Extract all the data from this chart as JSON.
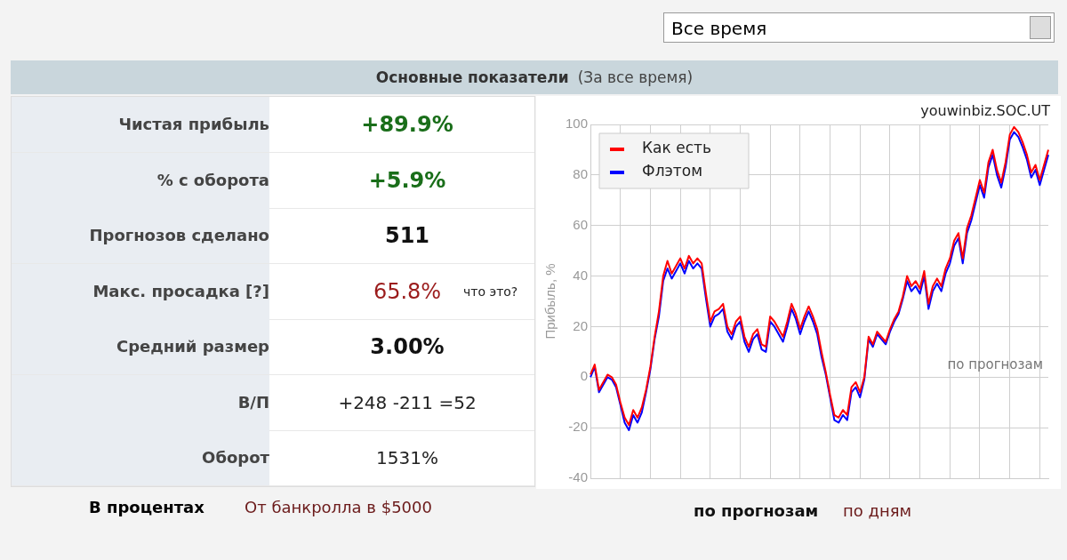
{
  "chart_data": [
    {
      "type": "other",
      "title": "Основные показатели",
      "subtitle": "(За все время)",
      "annotations": [
        "Чистая прибыль",
        "+89.9%",
        "% с оборота",
        "+5.9%",
        "Прогнозов сделано",
        "511",
        "Макс. просадка [?]",
        "65.8%",
        "Средний размер",
        "3.00%",
        "В/П",
        "+248 -211 =52",
        "Оборот",
        "1531%",
        "что это?",
        "В процентах",
        "От банкролла в $5000",
        "Все время"
      ]
    },
    {
      "type": "line",
      "subtitle": "youwinbiz.SOC.UT",
      "ylabel": "Прибыль, %",
      "annotations": [
        "по прогнозам",
        "по прогнозам",
        "по дням"
      ],
      "categories": [
        null,
        null,
        null,
        null,
        null,
        null,
        null,
        null,
        null,
        null,
        null,
        null,
        null,
        null,
        null,
        null,
        null,
        null,
        null,
        null,
        null,
        null,
        null,
        null,
        null,
        null,
        null,
        null,
        null,
        null,
        null,
        null,
        null,
        null,
        null,
        null,
        null,
        null,
        null,
        null,
        null,
        null,
        null,
        null,
        null,
        null,
        null,
        null,
        null,
        null,
        null,
        null,
        null,
        null,
        null,
        null,
        null,
        null,
        null,
        null,
        null,
        null,
        null,
        null,
        null,
        null,
        null,
        null,
        null,
        null,
        null,
        null,
        null,
        null,
        null,
        null,
        null,
        null,
        null,
        null,
        null,
        null,
        null,
        null,
        null,
        null,
        null,
        null,
        null,
        null,
        null,
        null,
        null,
        null,
        null,
        null,
        null,
        null,
        null,
        null,
        null,
        null,
        null,
        null,
        null,
        null,
        null,
        null
      ],
      "ylim": [
        -40,
        100
      ],
      "yticks": [
        -40,
        -20,
        0,
        20,
        40,
        60,
        80,
        100
      ],
      "grid": true,
      "legend": "top left",
      "tick_labels": "y",
      "marker": "none",
      "series": [
        {
          "name": "Как есть",
          "color": "#ff0000",
          "values": [
            1,
            5,
            -5,
            -2,
            1,
            0,
            -3,
            -10,
            -16,
            -19,
            -13,
            -16,
            -12,
            -5,
            4,
            16,
            26,
            40,
            46,
            41,
            44,
            47,
            43,
            48,
            45,
            47,
            45,
            33,
            22,
            26,
            27,
            29,
            20,
            17,
            22,
            24,
            16,
            12,
            17,
            19,
            13,
            12,
            24,
            22,
            19,
            16,
            22,
            29,
            25,
            19,
            24,
            28,
            24,
            19,
            10,
            2,
            -7,
            -15,
            -16,
            -13,
            -15,
            -4,
            -2,
            -6,
            0,
            16,
            13,
            18,
            16,
            14,
            19,
            23,
            26,
            32,
            40,
            36,
            38,
            35,
            42,
            29,
            36,
            39,
            36,
            43,
            47,
            54,
            57,
            47,
            59,
            64,
            71,
            78,
            73,
            85,
            90,
            82,
            77,
            85,
            96,
            99,
            97,
            93,
            88,
            81,
            84,
            78,
            84,
            90
          ]
        },
        {
          "name": "Флэтом",
          "color": "#0000ff",
          "values": [
            0,
            4,
            -6,
            -3,
            0,
            -1,
            -4,
            -11,
            -18,
            -21,
            -15,
            -18,
            -14,
            -6,
            3,
            15,
            24,
            38,
            43,
            39,
            42,
            45,
            41,
            46,
            43,
            45,
            43,
            31,
            20,
            24,
            25,
            27,
            18,
            15,
            20,
            22,
            14,
            10,
            15,
            17,
            11,
            10,
            22,
            20,
            17,
            14,
            20,
            27,
            23,
            17,
            22,
            26,
            22,
            17,
            8,
            1,
            -8,
            -17,
            -18,
            -15,
            -17,
            -6,
            -4,
            -8,
            -1,
            15,
            12,
            17,
            15,
            13,
            18,
            22,
            25,
            31,
            38,
            34,
            36,
            33,
            40,
            27,
            34,
            37,
            34,
            41,
            45,
            52,
            55,
            45,
            57,
            62,
            69,
            76,
            71,
            83,
            88,
            80,
            75,
            83,
            94,
            97,
            95,
            91,
            86,
            79,
            82,
            76,
            82,
            88
          ]
        }
      ]
    }
  ]
}
